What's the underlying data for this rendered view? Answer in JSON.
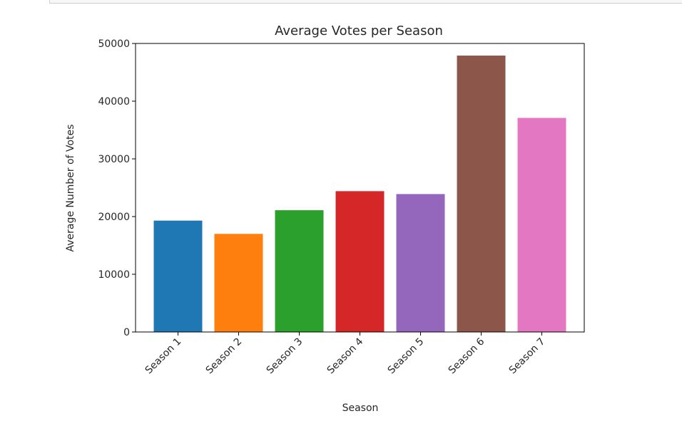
{
  "chart_data": {
    "type": "bar",
    "title": "Average Votes per Season",
    "xlabel": "Season",
    "ylabel": "Average Number of Votes",
    "categories": [
      "Season 1",
      "Season 2",
      "Season 3",
      "Season 4",
      "Season 5",
      "Season 6",
      "Season 7"
    ],
    "values": [
      19300,
      17000,
      21100,
      24400,
      23900,
      47900,
      37100
    ],
    "colors": [
      "#1f77b4",
      "#ff7f0e",
      "#2ca02c",
      "#d62728",
      "#9467bd",
      "#8c564b",
      "#e377c2"
    ],
    "ylim": [
      0,
      50000
    ],
    "yticks": [
      0,
      10000,
      20000,
      30000,
      40000,
      50000
    ],
    "ytick_labels": [
      "0",
      "10000",
      "20000",
      "30000",
      "40000",
      "50000"
    ],
    "grid": false,
    "legend": "none"
  }
}
